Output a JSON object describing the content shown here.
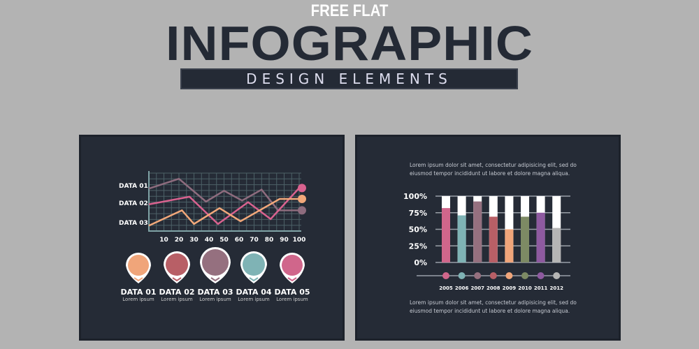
{
  "header": {
    "line1": "FREE FLAT",
    "line2": "INFOGRAPHIC",
    "line3": "DESIGN ELEMENTS"
  },
  "chart_data": [
    {
      "type": "line",
      "xlabel": "",
      "ylabel": "",
      "xlim": [
        0,
        100
      ],
      "ylim": [
        0,
        100
      ],
      "x_ticks": [
        "10",
        "20",
        "30",
        "40",
        "50",
        "60",
        "70",
        "80",
        "90",
        "100"
      ],
      "grid": true,
      "series": [
        {
          "name": "DATA 01",
          "color": "#8e6c7e",
          "points": [
            [
              0,
              78
            ],
            [
              20,
              96
            ],
            [
              38,
              54
            ],
            [
              50,
              74
            ],
            [
              62,
              56
            ],
            [
              75,
              76
            ],
            [
              86,
              38
            ],
            [
              100,
              38
            ]
          ]
        },
        {
          "name": "DATA 02",
          "color": "#d9628f",
          "points": [
            [
              0,
              49
            ],
            [
              27,
              63
            ],
            [
              46,
              13
            ],
            [
              66,
              53
            ],
            [
              81,
              22
            ],
            [
              100,
              79
            ]
          ]
        },
        {
          "name": "DATA 03",
          "color": "#f2a87a",
          "points": [
            [
              0,
              10
            ],
            [
              22,
              38
            ],
            [
              30,
              13
            ],
            [
              47,
              42
            ],
            [
              61,
              18
            ],
            [
              87,
              59
            ],
            [
              100,
              59
            ]
          ]
        }
      ]
    },
    {
      "type": "bar",
      "stacked_percent": true,
      "ylim": [
        0,
        100
      ],
      "y_ticks": [
        "100%",
        "75%",
        "50%",
        "25%",
        "0%"
      ],
      "categories": [
        "2005",
        "2006",
        "2007",
        "2008",
        "2009",
        "2010",
        "2011",
        "2012"
      ],
      "values": [
        82,
        71,
        92,
        69,
        50,
        69,
        75,
        52
      ],
      "colors": [
        "#d0668b",
        "#7fb3b5",
        "#95707f",
        "#b85f66",
        "#f0a57a",
        "#7d8a64",
        "#8e5aa0",
        "#b5b5b5"
      ]
    }
  ],
  "pins": [
    {
      "label": "DATA 01",
      "sub": "Lorem ipsum",
      "color": "#f0a57a"
    },
    {
      "label": "DATA 02",
      "sub": "Lorem ipsum",
      "color": "#b85f66"
    },
    {
      "label": "DATA 03",
      "sub": "Lorem ipsum",
      "color": "#95707f"
    },
    {
      "label": "DATA 04",
      "sub": "Lorem ipsum",
      "color": "#7fb3b5"
    },
    {
      "label": "DATA 05",
      "sub": "Lorem ipsum",
      "color": "#d0668b"
    }
  ],
  "text_top": "Lorem ipsum dolor sit amet, consectetur adipisicing elit, sed do eiusmod tempor incididunt ut labore et dolore magna aliqua.",
  "text_bottom": "Lorem ipsum dolor sit amet, consectetur adipisicing elit, sed do eiusmod tempor incididunt ut labore et dolore magna aliqua."
}
